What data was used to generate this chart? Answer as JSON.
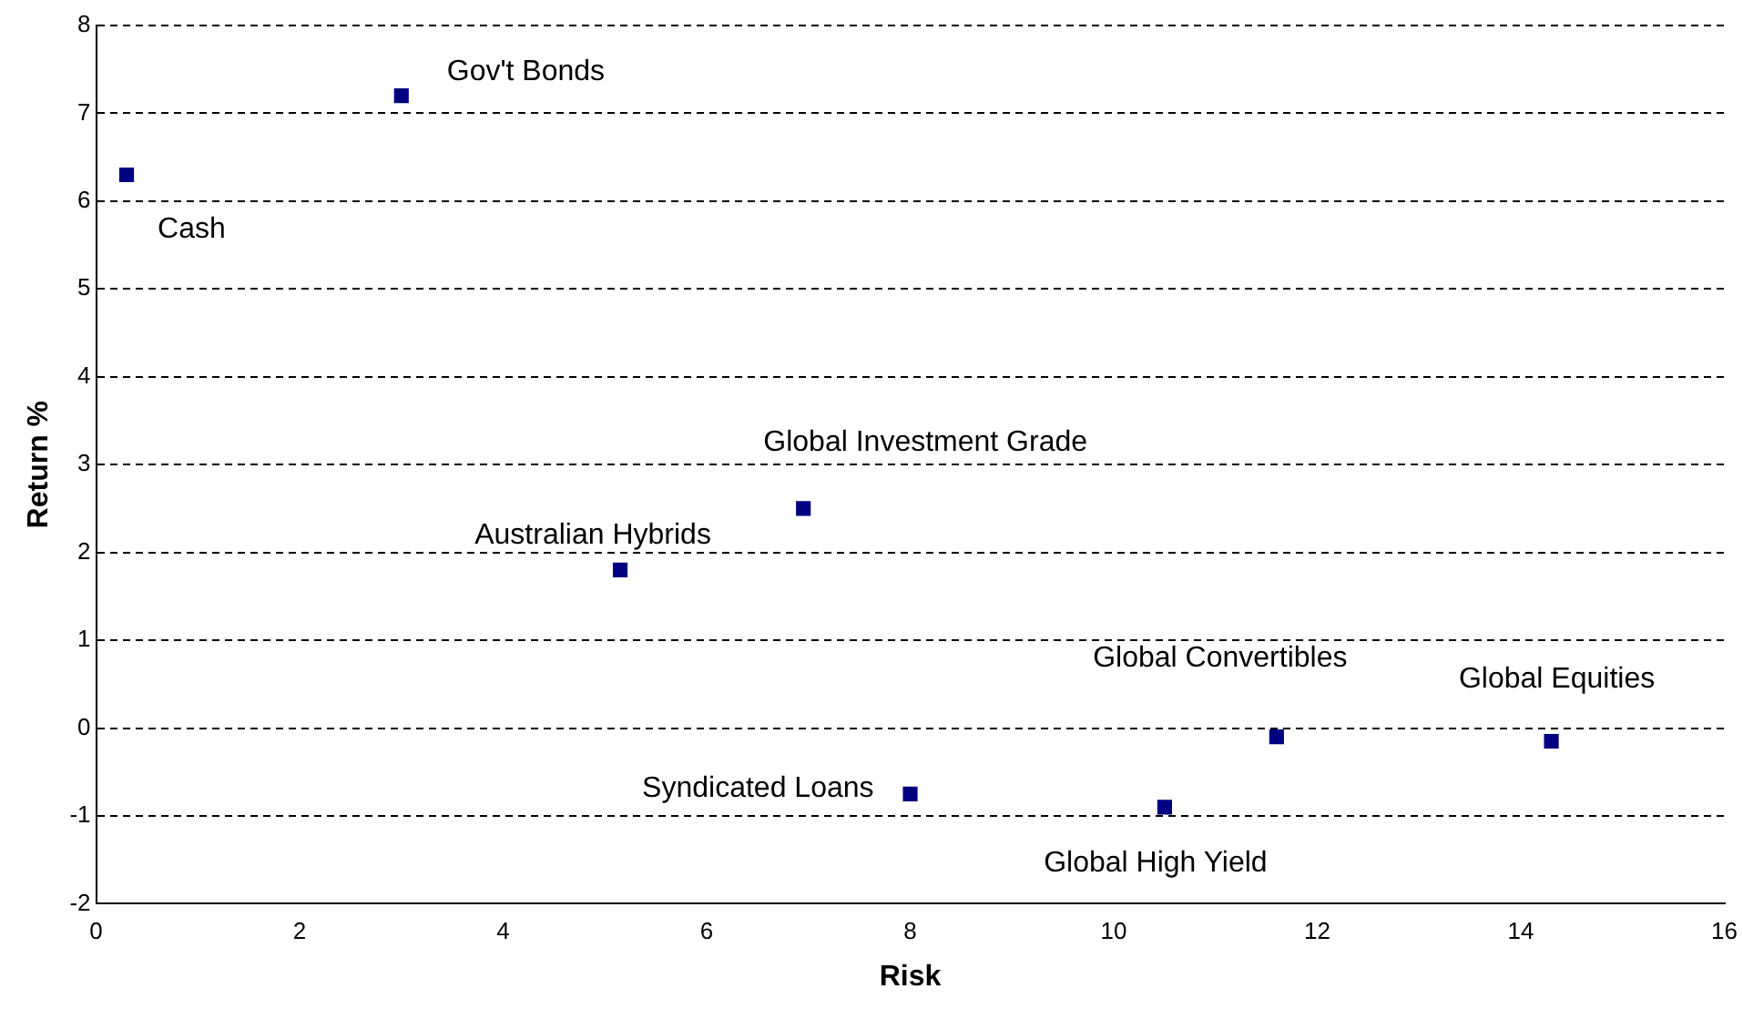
{
  "chart_data": {
    "type": "scatter",
    "xlabel": "Risk",
    "ylabel": "Return %",
    "x": [
      0.3,
      3.0,
      5.15,
      6.95,
      8.0,
      10.5,
      11.6,
      14.3
    ],
    "series": [
      {
        "color": "#000080",
        "values": [
          6.3,
          7.2,
          1.8,
          2.5,
          -0.75,
          -0.9,
          -0.1,
          -0.15
        ]
      }
    ],
    "annotations": [
      {
        "text": "Cash",
        "x": 0.3,
        "y": 6.3
      },
      {
        "text": "Gov't Bonds",
        "x": 3.0,
        "y": 7.2
      },
      {
        "text": "Australian Hybrids",
        "x": 5.15,
        "y": 1.8
      },
      {
        "text": "Global Investment Grade",
        "x": 6.95,
        "y": 2.5
      },
      {
        "text": "Syndicated Loans",
        "x": 8.0,
        "y": -0.75
      },
      {
        "text": "Global High Yield",
        "x": 10.5,
        "y": -0.9
      },
      {
        "text": "Global Convertibles",
        "x": 11.6,
        "y": -0.1
      },
      {
        "text": "Global Equities",
        "x": 14.3,
        "y": -0.15
      }
    ],
    "xlim": [
      0,
      16
    ],
    "xticks": [
      0,
      2,
      4,
      6,
      8,
      10,
      12,
      14,
      16
    ],
    "ylim": [
      -2,
      8
    ],
    "yticks": [
      -2,
      -1,
      0,
      1,
      2,
      3,
      4,
      5,
      6,
      7,
      8
    ],
    "grid": "y",
    "legend": false,
    "marker": "square"
  }
}
